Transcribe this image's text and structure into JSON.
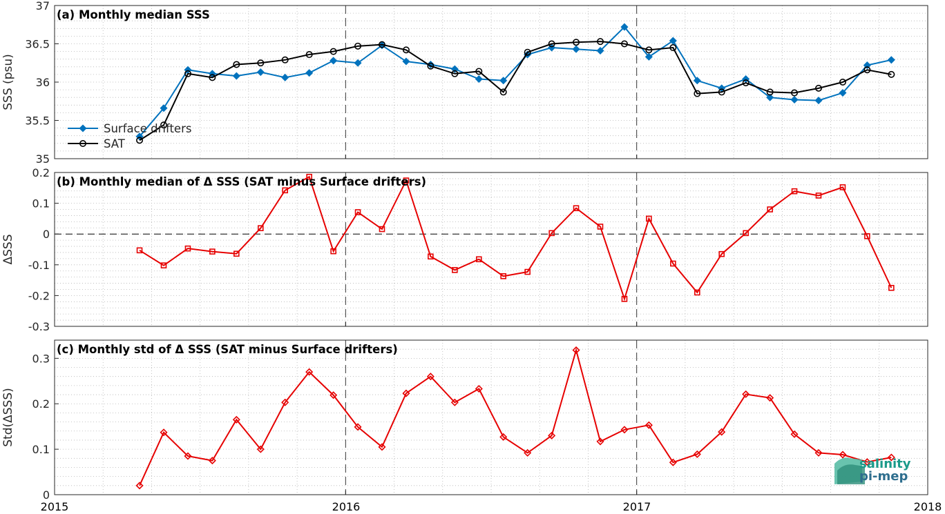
{
  "x_ticks": [
    "2015",
    "2016",
    "2017",
    "2018"
  ],
  "logo": {
    "line1": "salinity",
    "line2": "pi-mep"
  },
  "colors": {
    "drifters": "#0072bd",
    "sat": "#000000",
    "delta": "#e60000",
    "grid": "#b4b4b4"
  },
  "chart_data": [
    {
      "type": "line",
      "title": "(a) Monthly median SSS",
      "ylabel": "SSS (psu)",
      "xlim": [
        2015.0,
        2018.0
      ],
      "ylim": [
        35,
        37
      ],
      "y_ticks": [
        "35",
        "35.5",
        "36",
        "36.5",
        "37"
      ],
      "legend": "left",
      "x": [
        2015.292,
        2015.375,
        2015.458,
        2015.542,
        2015.625,
        2015.708,
        2015.792,
        2015.875,
        2015.958,
        2016.042,
        2016.125,
        2016.208,
        2016.292,
        2016.375,
        2016.458,
        2016.542,
        2016.625,
        2016.708,
        2016.792,
        2016.875,
        2016.958,
        2017.042,
        2017.125,
        2017.208,
        2017.292,
        2017.375,
        2017.458,
        2017.542,
        2017.625,
        2017.708,
        2017.792,
        2017.875
      ],
      "series": [
        {
          "name": "Surface drifters",
          "marker": "diamond",
          "values": [
            35.29,
            35.66,
            36.16,
            36.11,
            36.08,
            36.13,
            36.06,
            36.12,
            36.28,
            36.25,
            36.48,
            36.27,
            36.23,
            36.17,
            36.04,
            36.02,
            36.36,
            36.45,
            36.43,
            36.41,
            36.72,
            36.33,
            36.54,
            36.02,
            35.92,
            36.04,
            35.8,
            35.77,
            35.76,
            35.86,
            36.22,
            36.29
          ]
        },
        {
          "name": "SAT",
          "marker": "circle",
          "values": [
            35.24,
            35.44,
            36.11,
            36.06,
            36.23,
            36.25,
            36.29,
            36.36,
            36.4,
            36.47,
            36.49,
            36.42,
            36.21,
            36.11,
            36.14,
            35.87,
            36.39,
            36.5,
            36.52,
            36.53,
            36.5,
            36.42,
            36.45,
            35.85,
            35.87,
            35.99,
            35.87,
            35.86,
            35.92,
            36.0,
            36.16,
            36.1
          ]
        }
      ]
    },
    {
      "type": "line",
      "title": "(b) Monthly median of Δ SSS (SAT minus Surface drifters)",
      "ylabel": "ΔSSS",
      "xlim": [
        2015.0,
        2018.0
      ],
      "ylim": [
        -0.3,
        0.2
      ],
      "y_ticks": [
        "-0.3",
        "-0.2",
        "-0.1",
        "0",
        "0.1",
        "0.2"
      ],
      "x": [
        2015.292,
        2015.375,
        2015.458,
        2015.542,
        2015.625,
        2015.708,
        2015.792,
        2015.875,
        2015.958,
        2016.042,
        2016.125,
        2016.208,
        2016.292,
        2016.375,
        2016.458,
        2016.542,
        2016.625,
        2016.708,
        2016.792,
        2016.875,
        2016.958,
        2017.042,
        2017.125,
        2017.208,
        2017.292,
        2017.375,
        2017.458,
        2017.542,
        2017.625,
        2017.708,
        2017.792,
        2017.875
      ],
      "series": [
        {
          "marker": "square",
          "values": [
            -0.053,
            -0.102,
            -0.047,
            -0.057,
            -0.064,
            0.019,
            0.142,
            0.186,
            -0.056,
            0.071,
            0.016,
            0.174,
            -0.073,
            -0.117,
            -0.082,
            -0.137,
            -0.123,
            0.003,
            0.084,
            0.024,
            -0.211,
            0.05,
            -0.096,
            -0.19,
            -0.065,
            0.003,
            0.08,
            0.139,
            0.125,
            0.152,
            -0.007,
            -0.175
          ]
        }
      ]
    },
    {
      "type": "line",
      "title": "(c) Monthly std of Δ SSS (SAT minus Surface drifters)",
      "ylabel": "Std(ΔSSS)",
      "xlim": [
        2015.0,
        2018.0
      ],
      "ylim": [
        0,
        0.34
      ],
      "y_ticks": [
        "0",
        "0.1",
        "0.2",
        "0.3"
      ],
      "x": [
        2015.292,
        2015.375,
        2015.458,
        2015.542,
        2015.625,
        2015.708,
        2015.792,
        2015.875,
        2015.958,
        2016.042,
        2016.125,
        2016.208,
        2016.292,
        2016.375,
        2016.458,
        2016.542,
        2016.625,
        2016.708,
        2016.792,
        2016.875,
        2016.958,
        2017.042,
        2017.125,
        2017.208,
        2017.292,
        2017.375,
        2017.458,
        2017.542,
        2017.625,
        2017.708,
        2017.792,
        2017.875
      ],
      "series": [
        {
          "marker": "diamond",
          "values": [
            0.02,
            0.137,
            0.085,
            0.075,
            0.165,
            0.1,
            0.203,
            0.27,
            0.219,
            0.149,
            0.105,
            0.223,
            0.26,
            0.203,
            0.233,
            0.127,
            0.092,
            0.13,
            0.318,
            0.117,
            0.143,
            0.153,
            0.071,
            0.089,
            0.138,
            0.221,
            0.213,
            0.133,
            0.092,
            0.088,
            0.072,
            0.082
          ]
        }
      ]
    }
  ]
}
